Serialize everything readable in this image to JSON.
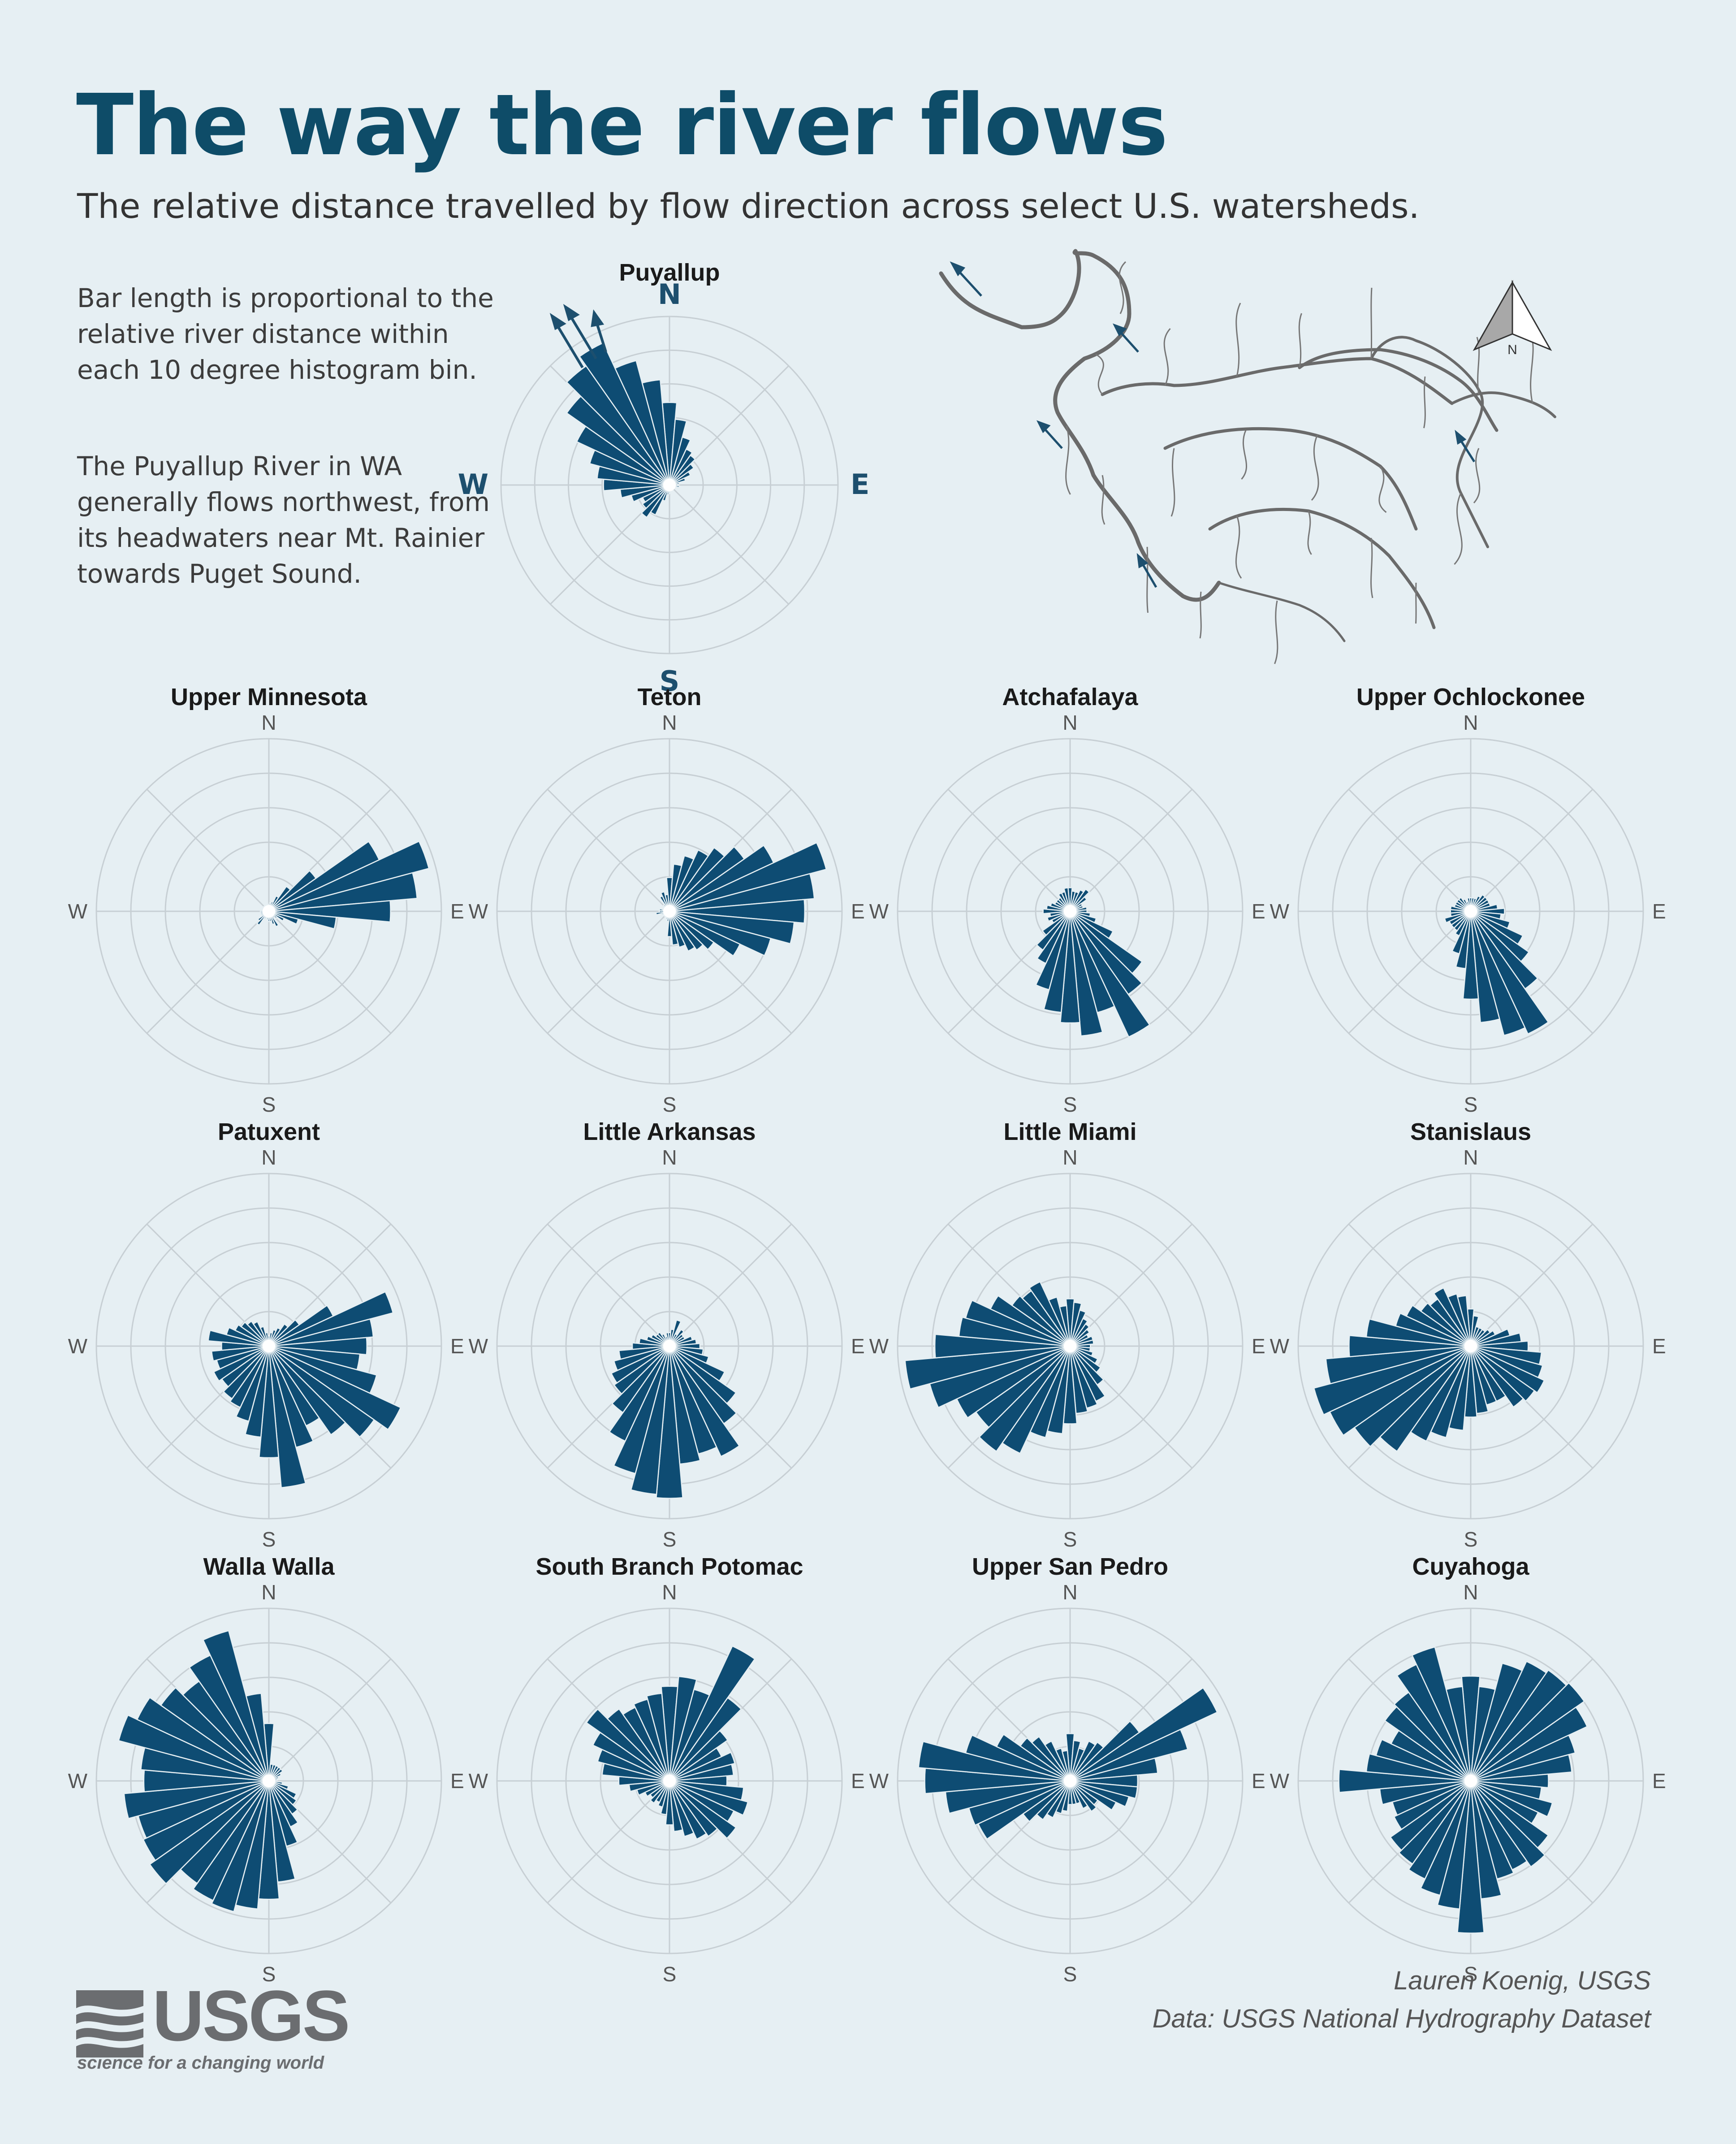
{
  "header": {
    "title": "The way the river flows",
    "subtitle": "The relative distance travelled by flow direction across select U.S. watersheds."
  },
  "notes": {
    "note1": "Bar length is proportional to the relative river distance within each 10 degree histogram bin.",
    "note2": "The Puyallup River in WA generally flows northwest, from its headwaters near Mt. Rainier towards Puget Sound."
  },
  "compass": {
    "n": "N",
    "e": "E",
    "s": "S",
    "w": "W",
    "north_arrow_label": "N"
  },
  "footer": {
    "credit_author": "Lauren Koenig, USGS",
    "credit_data": "Data: USGS National Hydrography Dataset",
    "logo_text": "USGS",
    "logo_tagline": "science for a changing world"
  },
  "colors": {
    "bar": "#0e4c73",
    "title": "#0e4c68",
    "background": "#e6eff3",
    "grid": "#c7cfd4",
    "river": "#6a6a6a"
  },
  "chart_data": [
    {
      "type": "bar",
      "polar": true,
      "title": "Puyallup",
      "bin_degrees": 10,
      "angles_deg": [
        0,
        10,
        20,
        30,
        40,
        50,
        60,
        70,
        80,
        90,
        100,
        110,
        120,
        130,
        140,
        150,
        160,
        170,
        180,
        190,
        200,
        210,
        220,
        230,
        240,
        250,
        260,
        270,
        280,
        290,
        300,
        310,
        320,
        330,
        340,
        350
      ],
      "values": [
        0.5,
        0.4,
        0.3,
        0.24,
        0.22,
        0.18,
        0.14,
        0.1,
        0.06,
        0.05,
        0.06,
        0.04,
        0.03,
        0.03,
        0.03,
        0.02,
        0.03,
        0.03,
        0.05,
        0.06,
        0.1,
        0.2,
        0.24,
        0.2,
        0.18,
        0.24,
        0.3,
        0.4,
        0.44,
        0.5,
        0.62,
        0.76,
        0.88,
        0.95,
        0.78,
        0.64
      ]
    },
    {
      "type": "bar",
      "polar": true,
      "title": "Upper Minnesota",
      "bin_degrees": 10,
      "values": [
        0.04,
        0.05,
        0.06,
        0.1,
        0.18,
        0.34,
        0.72,
        0.98,
        0.88,
        0.72,
        0.4,
        0.18,
        0.1,
        0.06,
        0.05,
        0.1,
        0.08,
        0.06,
        0.06,
        0.05,
        0.04,
        0.05,
        0.1,
        0.08,
        0.05,
        0.05,
        0.05,
        0.05,
        0.04,
        0.04,
        0.04,
        0.04,
        0.04,
        0.04,
        0.04,
        0.04
      ]
    },
    {
      "type": "bar",
      "polar": true,
      "title": "Teton",
      "bin_degrees": 10,
      "values": [
        0.2,
        0.28,
        0.34,
        0.4,
        0.46,
        0.54,
        0.68,
        0.96,
        0.86,
        0.8,
        0.74,
        0.62,
        0.46,
        0.32,
        0.28,
        0.26,
        0.22,
        0.2,
        0.15,
        0.06,
        0.05,
        0.04,
        0.04,
        0.04,
        0.04,
        0.05,
        0.08,
        0.06,
        0.06,
        0.04,
        0.04,
        0.04,
        0.05,
        0.1,
        0.12,
        0.1
      ]
    },
    {
      "type": "bar",
      "polar": true,
      "title": "Atchafalaya",
      "bin_degrees": 10,
      "values": [
        0.14,
        0.12,
        0.12,
        0.14,
        0.16,
        0.12,
        0.08,
        0.08,
        0.1,
        0.1,
        0.12,
        0.16,
        0.28,
        0.52,
        0.6,
        0.82,
        0.62,
        0.74,
        0.66,
        0.6,
        0.48,
        0.34,
        0.28,
        0.2,
        0.12,
        0.14,
        0.12,
        0.16,
        0.14,
        0.12,
        0.1,
        0.1,
        0.1,
        0.12,
        0.12,
        0.14
      ]
    },
    {
      "type": "bar",
      "polar": true,
      "title": "Upper Ochlockonee",
      "bin_degrees": 10,
      "values": [
        0.08,
        0.08,
        0.08,
        0.1,
        0.12,
        0.12,
        0.12,
        0.12,
        0.16,
        0.2,
        0.18,
        0.24,
        0.34,
        0.42,
        0.56,
        0.8,
        0.76,
        0.66,
        0.52,
        0.34,
        0.26,
        0.16,
        0.14,
        0.14,
        0.14,
        0.16,
        0.12,
        0.12,
        0.12,
        0.1,
        0.1,
        0.1,
        0.1,
        0.08,
        0.06,
        0.08
      ]
    },
    {
      "type": "bar",
      "polar": true,
      "title": "Patuxent",
      "bin_degrees": 10,
      "values": [
        0.06,
        0.08,
        0.1,
        0.12,
        0.16,
        0.22,
        0.42,
        0.76,
        0.62,
        0.58,
        0.54,
        0.66,
        0.86,
        0.76,
        0.64,
        0.52,
        0.62,
        0.84,
        0.66,
        0.54,
        0.46,
        0.4,
        0.38,
        0.34,
        0.36,
        0.32,
        0.34,
        0.28,
        0.36,
        0.26,
        0.22,
        0.2,
        0.18,
        0.16,
        0.12,
        0.08
      ]
    },
    {
      "type": "bar",
      "polar": true,
      "title": "Little Arkansas",
      "bin_degrees": 10,
      "values": [
        0.08,
        0.1,
        0.16,
        0.08,
        0.12,
        0.1,
        0.1,
        0.14,
        0.16,
        0.18,
        0.2,
        0.24,
        0.36,
        0.48,
        0.56,
        0.72,
        0.66,
        0.7,
        0.9,
        0.88,
        0.78,
        0.62,
        0.48,
        0.4,
        0.38,
        0.34,
        0.3,
        0.22,
        0.18,
        0.14,
        0.12,
        0.1,
        0.1,
        0.08,
        0.06,
        0.08
      ]
    },
    {
      "type": "bar",
      "polar": true,
      "title": "Little Miami",
      "bin_degrees": 10,
      "values": [
        0.28,
        0.26,
        0.22,
        0.18,
        0.16,
        0.14,
        0.12,
        0.14,
        0.14,
        0.12,
        0.12,
        0.14,
        0.18,
        0.22,
        0.28,
        0.36,
        0.38,
        0.4,
        0.46,
        0.52,
        0.56,
        0.7,
        0.76,
        0.68,
        0.74,
        0.86,
        0.98,
        0.8,
        0.66,
        0.64,
        0.52,
        0.42,
        0.4,
        0.42,
        0.3,
        0.24
      ]
    },
    {
      "type": "bar",
      "polar": true,
      "title": "Stanislaus",
      "bin_degrees": 10,
      "values": [
        0.22,
        0.18,
        0.12,
        0.12,
        0.12,
        0.14,
        0.16,
        0.24,
        0.3,
        0.34,
        0.42,
        0.44,
        0.48,
        0.46,
        0.44,
        0.36,
        0.36,
        0.4,
        0.42,
        0.5,
        0.56,
        0.62,
        0.76,
        0.84,
        0.92,
        0.96,
        0.86,
        0.72,
        0.62,
        0.46,
        0.42,
        0.36,
        0.34,
        0.38,
        0.32,
        0.3
      ]
    },
    {
      "type": "bar",
      "polar": true,
      "title": "Walla Walla",
      "bin_degrees": 10,
      "values": [
        0.34,
        0.1,
        0.1,
        0.1,
        0.1,
        0.1,
        0.08,
        0.06,
        0.05,
        0.04,
        0.08,
        0.12,
        0.18,
        0.2,
        0.24,
        0.3,
        0.4,
        0.6,
        0.7,
        0.76,
        0.8,
        0.78,
        0.74,
        0.86,
        0.82,
        0.8,
        0.86,
        0.74,
        0.76,
        0.92,
        0.86,
        0.78,
        0.72,
        0.82,
        0.92,
        0.52
      ]
    },
    {
      "type": "bar",
      "polar": true,
      "title": "South Branch Potomac",
      "bin_degrees": 10,
      "values": [
        0.56,
        0.62,
        0.56,
        0.88,
        0.6,
        0.42,
        0.34,
        0.4,
        0.38,
        0.34,
        0.44,
        0.48,
        0.42,
        0.48,
        0.4,
        0.38,
        0.34,
        0.3,
        0.26,
        0.2,
        0.16,
        0.14,
        0.16,
        0.14,
        0.16,
        0.2,
        0.24,
        0.3,
        0.4,
        0.44,
        0.5,
        0.6,
        0.52,
        0.48,
        0.5,
        0.52
      ]
    },
    {
      "type": "bar",
      "polar": true,
      "title": "Upper San Pedro",
      "bin_degrees": 10,
      "values": [
        0.28,
        0.24,
        0.2,
        0.26,
        0.28,
        0.5,
        0.96,
        0.72,
        0.52,
        0.4,
        0.4,
        0.36,
        0.3,
        0.2,
        0.22,
        0.18,
        0.14,
        0.14,
        0.14,
        0.18,
        0.2,
        0.24,
        0.28,
        0.34,
        0.6,
        0.62,
        0.74,
        0.86,
        0.9,
        0.64,
        0.48,
        0.36,
        0.32,
        0.26,
        0.2,
        0.18
      ]
    },
    {
      "type": "bar",
      "polar": true,
      "title": "Cuyahoga",
      "bin_degrees": 10,
      "values": [
        0.62,
        0.56,
        0.72,
        0.78,
        0.8,
        0.82,
        0.76,
        0.64,
        0.6,
        0.46,
        0.42,
        0.5,
        0.44,
        0.56,
        0.62,
        0.58,
        0.6,
        0.7,
        0.9,
        0.76,
        0.7,
        0.64,
        0.6,
        0.58,
        0.5,
        0.48,
        0.54,
        0.78,
        0.62,
        0.58,
        0.52,
        0.62,
        0.64,
        0.76,
        0.82,
        0.56
      ]
    }
  ]
}
